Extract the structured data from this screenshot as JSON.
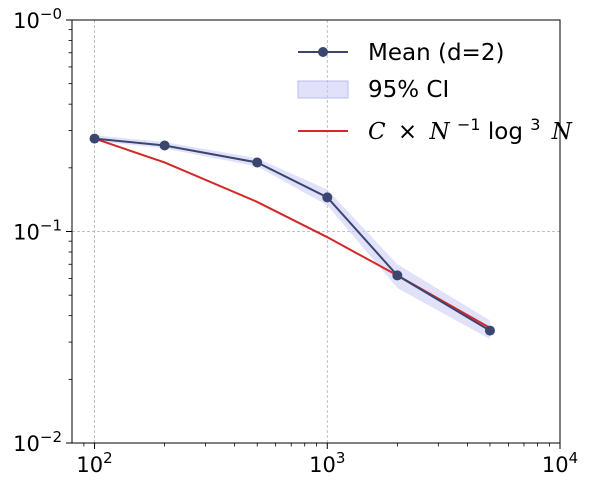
{
  "chart_data": {
    "type": "line",
    "xscale": "log",
    "yscale": "log",
    "xlim": [
      80,
      10000
    ],
    "ylim": [
      0.01,
      1.0
    ],
    "grid": true,
    "legend_position": "top-right",
    "x_tick_labels": [
      {
        "value": 100,
        "base": "10",
        "exp": "2"
      },
      {
        "value": 1000,
        "base": "10",
        "exp": "3"
      },
      {
        "value": 10000,
        "base": "10",
        "exp": "4"
      }
    ],
    "y_tick_labels": [
      {
        "value": 0.01,
        "base": "10",
        "exp": "−2"
      },
      {
        "value": 0.1,
        "base": "10",
        "exp": "−1"
      },
      {
        "value": 1.0,
        "base": "10",
        "exp": "−0"
      }
    ],
    "series": [
      {
        "name": "Mean (d=2)",
        "kind": "line-marker",
        "color": "#3b4670",
        "x": [
          100,
          200,
          500,
          1000,
          2000,
          5000
        ],
        "y": [
          0.275,
          0.255,
          0.212,
          0.145,
          0.062,
          0.034
        ]
      },
      {
        "name": "95% CI",
        "kind": "band",
        "color": "#c9cbf5",
        "x": [
          100,
          200,
          500,
          1000,
          2000,
          5000
        ],
        "lower": [
          0.268,
          0.247,
          0.203,
          0.133,
          0.054,
          0.031
        ],
        "upper": [
          0.285,
          0.265,
          0.222,
          0.158,
          0.07,
          0.038
        ]
      },
      {
        "name": "C × N^−1 log^3 N",
        "kind": "line",
        "color": "#d62728",
        "x": [
          100,
          200,
          500,
          1000,
          2000,
          5000
        ],
        "y": [
          0.275,
          0.212,
          0.138,
          0.094,
          0.062,
          0.035
        ]
      }
    ]
  },
  "legend": {
    "mean_label": "Mean (d=2)",
    "ci_label": "95% CI",
    "fit_label_C": "C",
    "fit_label_times": "×",
    "fit_label_N1": "N",
    "fit_label_exp1": "−1",
    "fit_label_log": "log",
    "fit_label_exp3": "3",
    "fit_label_N2": "N"
  }
}
